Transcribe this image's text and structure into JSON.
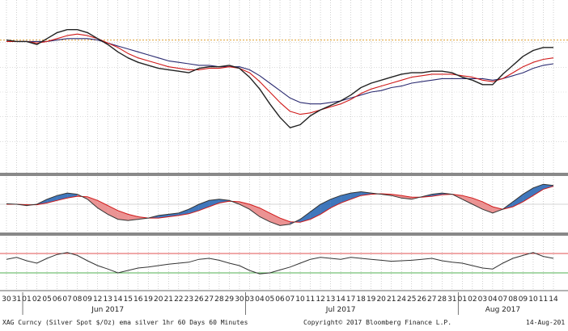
{
  "footer": {
    "security": "XAG Curncy (Silver Spot $/Oz) ema silver 1hr 60 Days 60 Minutes",
    "copyright": "Copyright© 2017 Bloomberg Finance L.P.",
    "date": "14-Aug-201"
  },
  "colors": {
    "price": "#222222",
    "ema_fast": "#d01818",
    "ema_slow": "#2a2a70",
    "ref_line": "#e0a030",
    "macd_pos": "#1f5fb0",
    "macd_neg": "#e88080",
    "rsi_high": "#e05050",
    "rsi_low": "#50b050",
    "panel_divider": "#888888"
  },
  "chart_data": {
    "type": "line",
    "x_tick_labels": [
      "30",
      "31",
      "01",
      "02",
      "05",
      "06",
      "07",
      "08",
      "09",
      "12",
      "13",
      "14",
      "15",
      "16",
      "19",
      "20",
      "21",
      "22",
      "23",
      "26",
      "27",
      "28",
      "29",
      "30",
      "03",
      "04",
      "05",
      "06",
      "07",
      "10",
      "11",
      "12",
      "13",
      "14",
      "17",
      "18",
      "19",
      "20",
      "21",
      "24",
      "25",
      "26",
      "27",
      "28",
      "31",
      "01",
      "02",
      "03",
      "04",
      "07",
      "08",
      "09",
      "10",
      "11",
      "14"
    ],
    "month_labels": [
      {
        "label": "Jun 2017",
        "tick_index": 10
      },
      {
        "label": "Jul 2017",
        "tick_index": 33
      },
      {
        "label": "Aug 2017",
        "tick_index": 49
      }
    ],
    "panels": [
      {
        "name": "price",
        "ylim": [
          0,
          100
        ],
        "reference_line": 85,
        "series": [
          {
            "role": "price",
            "values": [
              85,
              84,
              84,
              82,
              86,
              90,
              92,
              92,
              90,
              86,
              82,
              77,
              73,
              70,
              68,
              66,
              65,
              64,
              63,
              66,
              67,
              67,
              68,
              66,
              60,
              52,
              42,
              33,
              26,
              28,
              34,
              38,
              41,
              44,
              48,
              53,
              56,
              58,
              60,
              62,
              63,
              63,
              64,
              64,
              63,
              60,
              58,
              55,
              55,
              62,
              68,
              74,
              78,
              80,
              80
            ]
          },
          {
            "role": "ema_fast",
            "values": [
              84,
              84,
              84,
              83,
              84,
              86,
              88,
              89,
              88,
              86,
              83,
              80,
              76,
              73,
              71,
              69,
              67,
              66,
              65,
              65,
              66,
              66,
              67,
              66,
              63,
              57,
              50,
              43,
              37,
              35,
              36,
              38,
              40,
              42,
              45,
              49,
              52,
              54,
              56,
              58,
              60,
              61,
              62,
              62,
              62,
              61,
              60,
              58,
              57,
              59,
              63,
              67,
              70,
              72,
              73
            ]
          },
          {
            "role": "ema_slow",
            "values": [
              84,
              84,
              84,
              84,
              84,
              85,
              86,
              86,
              86,
              85,
              83,
              81,
              79,
              77,
              75,
              73,
              71,
              70,
              69,
              68,
              68,
              67,
              67,
              67,
              65,
              61,
              56,
              51,
              46,
              43,
              42,
              42,
              43,
              44,
              46,
              48,
              50,
              51,
              53,
              54,
              56,
              57,
              58,
              59,
              59,
              59,
              59,
              59,
              58,
              59,
              61,
              63,
              66,
              68,
              69
            ]
          }
        ]
      },
      {
        "name": "macd",
        "ylim": [
          -100,
          100
        ],
        "series": [
          {
            "role": "macd_line",
            "values": [
              2,
              0,
              -5,
              0,
              20,
              35,
              45,
              40,
              20,
              -15,
              -40,
              -60,
              -65,
              -60,
              -55,
              -45,
              -40,
              -35,
              -20,
              0,
              15,
              20,
              15,
              0,
              -20,
              -50,
              -70,
              -85,
              -80,
              -60,
              -30,
              0,
              20,
              35,
              45,
              50,
              45,
              40,
              35,
              25,
              20,
              30,
              40,
              45,
              40,
              20,
              0,
              -20,
              -35,
              -20,
              10,
              40,
              65,
              80,
              75
            ]
          },
          {
            "role": "signal_line",
            "values": [
              0,
              0,
              -2,
              -2,
              5,
              15,
              25,
              32,
              30,
              15,
              -5,
              -25,
              -40,
              -50,
              -55,
              -55,
              -50,
              -45,
              -38,
              -25,
              -10,
              5,
              12,
              10,
              0,
              -15,
              -35,
              -55,
              -70,
              -72,
              -60,
              -40,
              -15,
              5,
              20,
              35,
              40,
              42,
              40,
              35,
              28,
              28,
              32,
              38,
              40,
              35,
              25,
              10,
              -10,
              -20,
              -10,
              10,
              35,
              60,
              72
            ]
          }
        ]
      },
      {
        "name": "rsi",
        "ylim": [
          0,
          100
        ],
        "upper_band": 70,
        "lower_band": 30,
        "series": [
          {
            "role": "rsi",
            "values": [
              58,
              62,
              55,
              50,
              60,
              68,
              72,
              66,
              55,
              45,
              38,
              30,
              35,
              40,
              42,
              45,
              48,
              50,
              52,
              58,
              60,
              56,
              50,
              45,
              35,
              28,
              30,
              36,
              42,
              50,
              58,
              62,
              60,
              58,
              62,
              60,
              58,
              56,
              54,
              55,
              56,
              58,
              60,
              55,
              52,
              50,
              45,
              40,
              38,
              50,
              60,
              66,
              72,
              64,
              60
            ]
          }
        ]
      }
    ]
  }
}
